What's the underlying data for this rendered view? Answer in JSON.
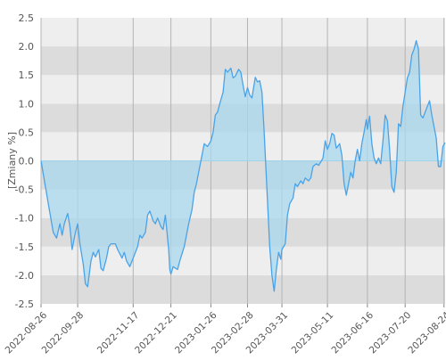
{
  "colors": {
    "band_dark": "#dcdcdc",
    "band_light": "#eeeeee",
    "vgrid": "#b4b4b4",
    "zero_line": "#9fd3ea",
    "line": "#4aa3e8",
    "fill": "#a9d8ee"
  },
  "chart_data": {
    "type": "area",
    "ylabel": "[Zmiany %]",
    "ylim": [
      -2.5,
      2.5
    ],
    "y_ticks": [
      "-2.5",
      "-2.0",
      "-1.5",
      "-1.0",
      "-0.5",
      "0.0",
      "0.5",
      "1.0",
      "1.5",
      "2.0",
      "2.5"
    ],
    "x_ticks": [
      "2022-08-26",
      "2022-09-28",
      "2022-11-17",
      "2022-12-21",
      "2023-01-26",
      "2023-02-28",
      "2023-03-31",
      "2023-05-11",
      "2023-06-16",
      "2023-07-20",
      "2023-08-24"
    ],
    "grid": true,
    "legend": "none",
    "series": [
      {
        "points": [
          [
            "2022-08-26",
            0.0
          ],
          [
            "2022-09-02",
            -0.8
          ],
          [
            "2022-09-06",
            -1.25
          ],
          [
            "2022-09-09",
            -1.35
          ],
          [
            "2022-09-12",
            -1.1
          ],
          [
            "2022-09-14",
            -1.3
          ],
          [
            "2022-09-16",
            -1.1
          ],
          [
            "2022-09-19",
            -0.92
          ],
          [
            "2022-09-21",
            -1.15
          ],
          [
            "2022-09-23",
            -1.55
          ],
          [
            "2022-09-26",
            -1.25
          ],
          [
            "2022-09-28",
            -1.1
          ],
          [
            "2022-09-30",
            -1.45
          ],
          [
            "2022-10-03",
            -1.8
          ],
          [
            "2022-10-05",
            -2.15
          ],
          [
            "2022-10-07",
            -2.2
          ],
          [
            "2022-10-10",
            -1.75
          ],
          [
            "2022-10-12",
            -1.6
          ],
          [
            "2022-10-14",
            -1.68
          ],
          [
            "2022-10-17",
            -1.55
          ],
          [
            "2022-10-19",
            -1.88
          ],
          [
            "2022-10-21",
            -1.92
          ],
          [
            "2022-10-24",
            -1.7
          ],
          [
            "2022-10-26",
            -1.5
          ],
          [
            "2022-10-28",
            -1.45
          ],
          [
            "2022-11-01",
            -1.45
          ],
          [
            "2022-11-03",
            -1.55
          ],
          [
            "2022-11-07",
            -1.7
          ],
          [
            "2022-11-09",
            -1.6
          ],
          [
            "2022-11-11",
            -1.75
          ],
          [
            "2022-11-14",
            -1.85
          ],
          [
            "2022-11-17",
            -1.7
          ],
          [
            "2022-11-21",
            -1.5
          ],
          [
            "2022-11-23",
            -1.3
          ],
          [
            "2022-11-25",
            -1.35
          ],
          [
            "2022-11-28",
            -1.25
          ],
          [
            "2022-11-30",
            -0.95
          ],
          [
            "2022-12-02",
            -0.88
          ],
          [
            "2022-12-05",
            -1.05
          ],
          [
            "2022-12-07",
            -1.1
          ],
          [
            "2022-12-09",
            -1.0
          ],
          [
            "2022-12-12",
            -1.15
          ],
          [
            "2022-12-14",
            -1.2
          ],
          [
            "2022-12-16",
            -0.95
          ],
          [
            "2022-12-19",
            -1.55
          ],
          [
            "2022-12-20",
            -1.9
          ],
          [
            "2022-12-21",
            -1.98
          ],
          [
            "2022-12-23",
            -1.85
          ],
          [
            "2022-12-27",
            -1.9
          ],
          [
            "2022-12-29",
            -1.75
          ],
          [
            "2023-01-02",
            -1.5
          ],
          [
            "2023-01-04",
            -1.3
          ],
          [
            "2023-01-06",
            -1.1
          ],
          [
            "2023-01-09",
            -0.85
          ],
          [
            "2023-01-11",
            -0.55
          ],
          [
            "2023-01-13",
            -0.4
          ],
          [
            "2023-01-16",
            -0.1
          ],
          [
            "2023-01-18",
            0.1
          ],
          [
            "2023-01-20",
            0.3
          ],
          [
            "2023-01-23",
            0.25
          ],
          [
            "2023-01-26",
            0.35
          ],
          [
            "2023-01-28",
            0.5
          ],
          [
            "2023-01-30",
            0.8
          ],
          [
            "2023-02-01",
            0.85
          ],
          [
            "2023-02-03",
            1.0
          ],
          [
            "2023-02-06",
            1.2
          ],
          [
            "2023-02-08",
            1.6
          ],
          [
            "2023-02-10",
            1.55
          ],
          [
            "2023-02-13",
            1.62
          ],
          [
            "2023-02-15",
            1.45
          ],
          [
            "2023-02-17",
            1.48
          ],
          [
            "2023-02-20",
            1.6
          ],
          [
            "2023-02-22",
            1.55
          ],
          [
            "2023-02-24",
            1.32
          ],
          [
            "2023-02-26",
            1.12
          ],
          [
            "2023-02-28",
            1.28
          ],
          [
            "2023-03-02",
            1.15
          ],
          [
            "2023-03-04",
            1.1
          ],
          [
            "2023-03-07",
            1.46
          ],
          [
            "2023-03-09",
            1.38
          ],
          [
            "2023-03-11",
            1.4
          ],
          [
            "2023-03-13",
            1.2
          ],
          [
            "2023-03-15",
            0.5
          ],
          [
            "2023-03-17",
            -0.3
          ],
          [
            "2023-03-20",
            -1.5
          ],
          [
            "2023-03-22",
            -2.0
          ],
          [
            "2023-03-24",
            -2.28
          ],
          [
            "2023-03-26",
            -1.9
          ],
          [
            "2023-03-28",
            -1.6
          ],
          [
            "2023-03-30",
            -1.72
          ],
          [
            "2023-03-31",
            -1.55
          ],
          [
            "2023-04-03",
            -1.45
          ],
          [
            "2023-04-05",
            -0.95
          ],
          [
            "2023-04-07",
            -0.75
          ],
          [
            "2023-04-10",
            -0.65
          ],
          [
            "2023-04-12",
            -0.4
          ],
          [
            "2023-04-14",
            -0.45
          ],
          [
            "2023-04-17",
            -0.35
          ],
          [
            "2023-04-19",
            -0.4
          ],
          [
            "2023-04-21",
            -0.3
          ],
          [
            "2023-04-24",
            -0.35
          ],
          [
            "2023-04-26",
            -0.3
          ],
          [
            "2023-04-28",
            -0.1
          ],
          [
            "2023-05-01",
            -0.05
          ],
          [
            "2023-05-03",
            -0.08
          ],
          [
            "2023-05-05",
            -0.02
          ],
          [
            "2023-05-07",
            0.05
          ],
          [
            "2023-05-09",
            0.35
          ],
          [
            "2023-05-11",
            0.2
          ],
          [
            "2023-05-13",
            0.3
          ],
          [
            "2023-05-15",
            0.48
          ],
          [
            "2023-05-17",
            0.45
          ],
          [
            "2023-05-19",
            0.22
          ],
          [
            "2023-05-22",
            0.3
          ],
          [
            "2023-05-24",
            0.1
          ],
          [
            "2023-05-26",
            -0.4
          ],
          [
            "2023-05-28",
            -0.6
          ],
          [
            "2023-05-30",
            -0.4
          ],
          [
            "2023-06-01",
            -0.2
          ],
          [
            "2023-06-03",
            -0.3
          ],
          [
            "2023-06-05",
            0.0
          ],
          [
            "2023-06-07",
            0.2
          ],
          [
            "2023-06-09",
            0.0
          ],
          [
            "2023-06-11",
            0.3
          ],
          [
            "2023-06-13",
            0.5
          ],
          [
            "2023-06-15",
            0.72
          ],
          [
            "2023-06-16",
            0.55
          ],
          [
            "2023-06-18",
            0.78
          ],
          [
            "2023-06-20",
            0.3
          ],
          [
            "2023-06-22",
            0.05
          ],
          [
            "2023-06-24",
            -0.05
          ],
          [
            "2023-06-26",
            0.05
          ],
          [
            "2023-06-28",
            -0.05
          ],
          [
            "2023-06-30",
            0.35
          ],
          [
            "2023-07-02",
            0.8
          ],
          [
            "2023-07-04",
            0.7
          ],
          [
            "2023-07-06",
            0.2
          ],
          [
            "2023-07-08",
            -0.45
          ],
          [
            "2023-07-10",
            -0.55
          ],
          [
            "2023-07-12",
            -0.2
          ],
          [
            "2023-07-14",
            0.65
          ],
          [
            "2023-07-16",
            0.6
          ],
          [
            "2023-07-18",
            0.95
          ],
          [
            "2023-07-20",
            1.2
          ],
          [
            "2023-07-22",
            1.45
          ],
          [
            "2023-07-24",
            1.55
          ],
          [
            "2023-07-26",
            1.85
          ],
          [
            "2023-07-28",
            1.95
          ],
          [
            "2023-07-30",
            2.1
          ],
          [
            "2023-08-01",
            1.95
          ],
          [
            "2023-08-03",
            0.8
          ],
          [
            "2023-08-05",
            0.75
          ],
          [
            "2023-08-07",
            0.85
          ],
          [
            "2023-08-09",
            0.95
          ],
          [
            "2023-08-11",
            1.05
          ],
          [
            "2023-08-13",
            0.8
          ],
          [
            "2023-08-15",
            0.6
          ],
          [
            "2023-08-17",
            0.4
          ],
          [
            "2023-08-19",
            -0.1
          ],
          [
            "2023-08-21",
            -0.1
          ],
          [
            "2023-08-23",
            0.25
          ],
          [
            "2023-08-25",
            0.32
          ]
        ]
      }
    ]
  }
}
